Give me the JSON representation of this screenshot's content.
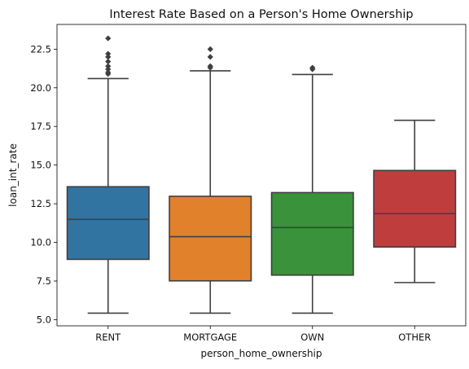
{
  "chart_data": {
    "type": "boxplot",
    "title": "Interest Rate Based on a Person's Home Ownership",
    "xlabel": "person_home_ownership",
    "ylabel": "loan_int_rate",
    "ylim": [
      4.6,
      24.1
    ],
    "yticks": [
      5.0,
      7.5,
      10.0,
      12.5,
      15.0,
      17.5,
      20.0,
      22.5
    ],
    "ytick_labels": [
      "5.0",
      "7.5",
      "10.0",
      "12.5",
      "15.0",
      "17.5",
      "20.0",
      "22.5"
    ],
    "grid": false,
    "categories": [
      "RENT",
      "MORTGAGE",
      "OWN",
      "OTHER"
    ],
    "boxes": [
      {
        "category": "RENT",
        "color": "#3274a1",
        "whisker_low": 5.42,
        "q1": 8.9,
        "median": 11.49,
        "q3": 13.6,
        "whisker_high": 20.6,
        "outliers": [
          20.9,
          21.0,
          21.2,
          21.4,
          21.7,
          22.0,
          22.2,
          23.2
        ]
      },
      {
        "category": "MORTGAGE",
        "color": "#e1812c",
        "whisker_low": 5.42,
        "q1": 7.51,
        "median": 10.37,
        "q3": 12.98,
        "whisker_high": 21.1,
        "outliers": [
          21.3,
          21.4,
          22.0,
          22.5
        ]
      },
      {
        "category": "OWN",
        "color": "#3a923a",
        "whisker_low": 5.42,
        "q1": 7.88,
        "median": 10.96,
        "q3": 13.22,
        "whisker_high": 20.86,
        "outliers": [
          21.2,
          21.3
        ]
      },
      {
        "category": "OTHER",
        "color": "#c03d3e",
        "whisker_low": 7.4,
        "q1": 9.7,
        "median": 11.86,
        "q3": 14.65,
        "whisker_high": 17.9,
        "outliers": []
      }
    ]
  }
}
